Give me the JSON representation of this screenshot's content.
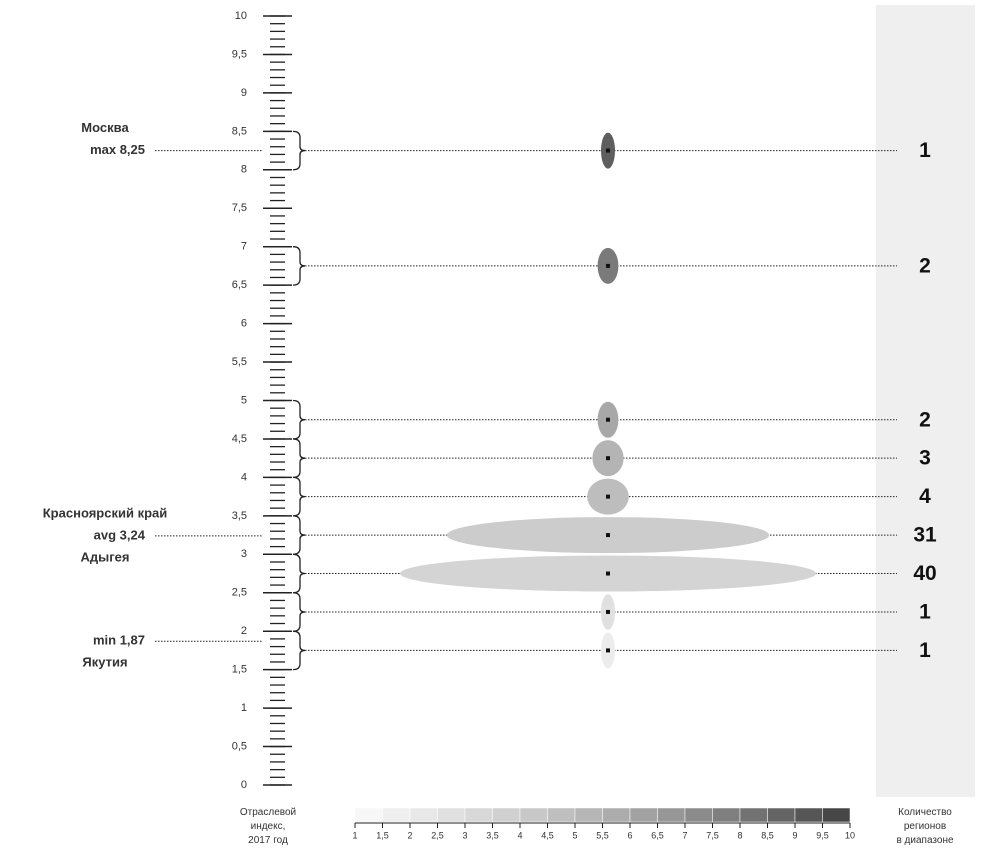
{
  "chart_data": {
    "type": "bubble",
    "ylim": [
      0,
      10
    ],
    "yticks": [
      0,
      {
        "value": 0.5,
        "label": "0,5"
      },
      1,
      {
        "value": 1.5,
        "label": "1,5"
      },
      2,
      {
        "value": 2.5,
        "label": "2,5"
      },
      3,
      {
        "value": 3.5,
        "label": "3,5"
      },
      4,
      {
        "value": 4.5,
        "label": "4,5"
      },
      5,
      {
        "value": 5.5,
        "label": "5,5"
      },
      6,
      {
        "value": 6.5,
        "label": "6,5"
      },
      7,
      {
        "value": 7.5,
        "label": "7,5"
      },
      8,
      {
        "value": 8.5,
        "label": "8,5"
      },
      9,
      {
        "value": 9.5,
        "label": "9,5"
      },
      10
    ],
    "minor_tick_step": 0.1,
    "bin_width": 0.5,
    "y": [
      8.25,
      6.75,
      4.75,
      4.25,
      3.75,
      3.25,
      2.75,
      2.25,
      1.75
    ],
    "counts": [
      1,
      2,
      2,
      3,
      4,
      31,
      40,
      1,
      1
    ],
    "colors": [
      "#5e5e5e",
      "#7a7a7a",
      "#a8a8a8",
      "#b4b4b4",
      "#bdbdbd",
      "#cccccc",
      "#d4d4d4",
      "#e0e0e0",
      "#ececec"
    ],
    "annotations": [
      {
        "value": 8.25,
        "label": "max 8,25",
        "above": "Москва"
      },
      {
        "value": 3.24,
        "label": "avg 3,24",
        "above": "Красноярский край",
        "below": "Адыгея"
      },
      {
        "value": 1.87,
        "label": "min 1,87",
        "below": "Якутия"
      }
    ],
    "legend_title": "Отраслевой индекс, 2017 год",
    "count_title": "Количество регионов в диапазоне",
    "scale_ticks": [
      1,
      {
        "value": 1.5,
        "label": "1,5"
      },
      2,
      {
        "value": 2.5,
        "label": "2,5"
      },
      3,
      {
        "value": 3.5,
        "label": "3,5"
      },
      4,
      {
        "value": 4.5,
        "label": "4,5"
      },
      5,
      {
        "value": 5.5,
        "label": "5,5"
      },
      6,
      {
        "value": 6.5,
        "label": "6,5"
      },
      7,
      {
        "value": 7.5,
        "label": "7,5"
      },
      8,
      {
        "value": 8.5,
        "label": "8,5"
      },
      9,
      {
        "value": 9.5,
        "label": "9,5"
      },
      10
    ],
    "scale_colors": [
      "#f7f7f7",
      "#efefef",
      "#e8e8e8",
      "#e0e0e0",
      "#d8d8d8",
      "#d0d0d0",
      "#c8c8c8",
      "#bfbfbf",
      "#b6b6b6",
      "#acacac",
      "#a2a2a2",
      "#979797",
      "#8b8b8b",
      "#7f7f7f",
      "#727272",
      "#646464",
      "#565656",
      "#474747"
    ]
  }
}
